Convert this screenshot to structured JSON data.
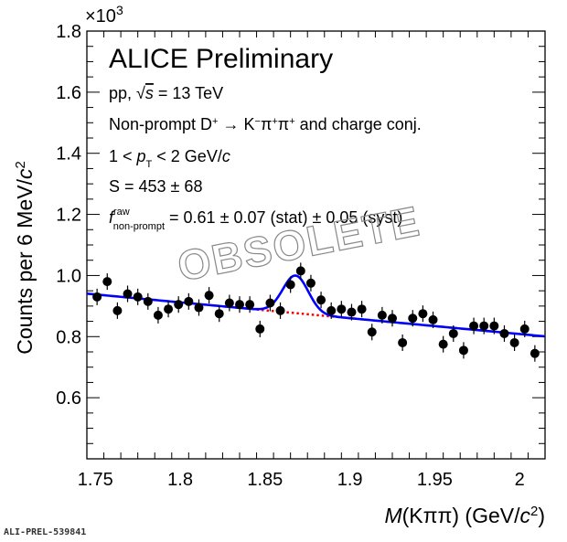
{
  "chart_data": {
    "type": "scatter",
    "title": "",
    "xlabel": "M(Kππ) (GeV/c²)",
    "ylabel": "Counts per 6 MeV/c²",
    "y_multiplier": "×10³",
    "xlim": [
      1.745,
      2.015
    ],
    "ylim": [
      0.4,
      1.8
    ],
    "xticks": [
      "1.75",
      "1.8",
      "1.85",
      "1.9",
      "1.95",
      "2"
    ],
    "yticks": [
      "0.6",
      "0.8",
      "1.0",
      "1.2",
      "1.4",
      "1.6",
      "1.8"
    ],
    "grid": false,
    "legend": "none",
    "annotations": {
      "experiment": "ALICE Preliminary",
      "system": "pp, √s = 13 TeV",
      "decay": "Non-prompt D⁺ → K⁻π⁺π⁺ and charge conj.",
      "pt_range": "1 < p_T < 2 GeV/c",
      "signal": "S = 453 ± 68",
      "fraction": "f^raw_non-prompt = 0.61 ± 0.07 (stat) ± 0.05 (syst)"
    },
    "watermark": "OBSOLETE",
    "figure_id": "ALI-PREL-539841",
    "series": [
      {
        "name": "data",
        "x": [
          1.751,
          1.757,
          1.763,
          1.769,
          1.775,
          1.781,
          1.787,
          1.793,
          1.799,
          1.805,
          1.811,
          1.817,
          1.823,
          1.829,
          1.835,
          1.841,
          1.847,
          1.853,
          1.859,
          1.865,
          1.871,
          1.877,
          1.883,
          1.889,
          1.895,
          1.901,
          1.907,
          1.913,
          1.919,
          1.925,
          1.931,
          1.937,
          1.943,
          1.949,
          1.955,
          1.961,
          1.967,
          1.973,
          1.979,
          1.985,
          1.991,
          1.997,
          2.003,
          2.009
        ],
        "y": [
          0.93,
          0.98,
          0.885,
          0.94,
          0.93,
          0.915,
          0.87,
          0.89,
          0.905,
          0.915,
          0.895,
          0.935,
          0.875,
          0.91,
          0.905,
          0.905,
          0.825,
          0.91,
          0.885,
          0.97,
          1.015,
          0.975,
          0.92,
          0.885,
          0.89,
          0.88,
          0.89,
          0.815,
          0.87,
          0.86,
          0.78,
          0.86,
          0.875,
          0.855,
          0.775,
          0.81,
          0.755,
          0.835,
          0.835,
          0.835,
          0.81,
          0.78,
          0.825,
          0.745
        ],
        "yerr": 0.027,
        "color": "#000000"
      },
      {
        "name": "total fit",
        "function": "0.938 - 0.518*(x-1.75) + 0.123*exp(-0.5*((x-1.868)/0.0075)^2)",
        "color": "#0000ff"
      },
      {
        "name": "background fit",
        "function": "0.938 - 0.518*(x-1.75)",
        "x_range": [
          1.845,
          1.895
        ],
        "color": "#ff0000",
        "style": "dotted"
      }
    ]
  }
}
